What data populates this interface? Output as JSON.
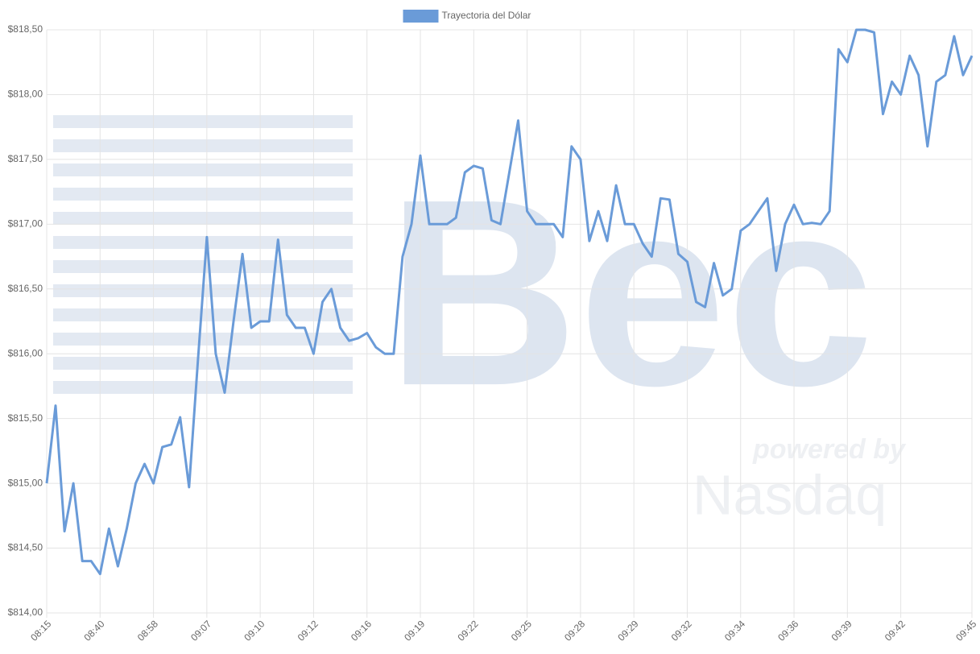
{
  "chart_data": {
    "type": "line",
    "watermark": [
      "Bec",
      "powered by",
      "Nasdaq"
    ],
    "categories": [
      "08:15",
      null,
      null,
      null,
      null,
      null,
      "08:40",
      null,
      null,
      null,
      null,
      null,
      "08:58",
      null,
      null,
      null,
      null,
      null,
      "09:07",
      null,
      null,
      null,
      null,
      null,
      "09:10",
      null,
      null,
      null,
      null,
      null,
      "09:12",
      null,
      null,
      null,
      null,
      null,
      "09:16",
      null,
      null,
      null,
      null,
      null,
      "09:19",
      null,
      null,
      null,
      null,
      null,
      "09:22",
      null,
      null,
      null,
      null,
      null,
      "09:25",
      null,
      null,
      null,
      null,
      null,
      "09:28",
      null,
      null,
      null,
      null,
      null,
      "09:29",
      null,
      null,
      null,
      null,
      null,
      "09:32",
      null,
      null,
      null,
      null,
      null,
      "09:34",
      null,
      null,
      null,
      null,
      null,
      "09:36",
      null,
      null,
      null,
      null,
      null,
      "09:39",
      null,
      null,
      null,
      null,
      null,
      "09:42",
      null,
      null,
      null,
      null,
      null,
      null,
      null,
      "09:45"
    ],
    "series": [
      {
        "name": "Trayectoria del Dólar",
        "color": "#6a9bd8",
        "values": [
          815.0,
          815.6,
          814.63,
          815.0,
          814.4,
          814.4,
          814.3,
          814.65,
          814.36,
          814.65,
          815.0,
          815.15,
          815.0,
          815.28,
          815.3,
          815.51,
          814.97,
          815.95,
          816.9,
          816.0,
          815.7,
          816.25,
          816.77,
          816.2,
          816.25,
          816.25,
          816.88,
          816.3,
          816.2,
          816.2,
          816.0,
          816.4,
          816.5,
          816.2,
          816.1,
          816.12,
          816.16,
          816.05,
          816.0,
          816.0,
          816.75,
          817.0,
          817.53,
          817.0,
          817.0,
          817.0,
          817.05,
          817.4,
          817.45,
          817.43,
          817.03,
          817.0,
          817.4,
          817.8,
          817.1,
          817.0,
          817.0,
          817.0,
          816.9,
          817.6,
          817.5,
          816.87,
          817.1,
          816.87,
          817.3,
          817.0,
          817.0,
          816.85,
          816.75,
          817.2,
          817.19,
          816.77,
          816.71,
          816.4,
          816.36,
          816.7,
          816.45,
          816.5,
          816.95,
          817.0,
          817.1,
          817.2,
          816.64,
          817.0,
          817.15,
          817.0,
          817.01,
          817.0,
          817.1,
          818.35,
          818.25,
          818.5,
          818.5,
          818.48,
          817.85,
          818.1,
          818.0,
          818.3,
          818.15,
          817.6,
          818.1,
          818.15,
          818.45,
          818.15,
          818.3
        ]
      }
    ],
    "ylim": [
      814,
      818.5
    ],
    "yticks": [
      {
        "value": 814,
        "label": "$814,00"
      },
      {
        "value": 814.5,
        "label": "$814,50"
      },
      {
        "value": 815,
        "label": "$815,00"
      },
      {
        "value": 815.5,
        "label": "$815,50"
      },
      {
        "value": 816,
        "label": "$816,00"
      },
      {
        "value": 816.5,
        "label": "$816,50"
      },
      {
        "value": 817,
        "label": "$817,00"
      },
      {
        "value": 817.5,
        "label": "$817,50"
      },
      {
        "value": 818,
        "label": "$818,00"
      },
      {
        "value": 818.5,
        "label": "$818,50"
      }
    ],
    "grid": true,
    "legend": "top"
  }
}
